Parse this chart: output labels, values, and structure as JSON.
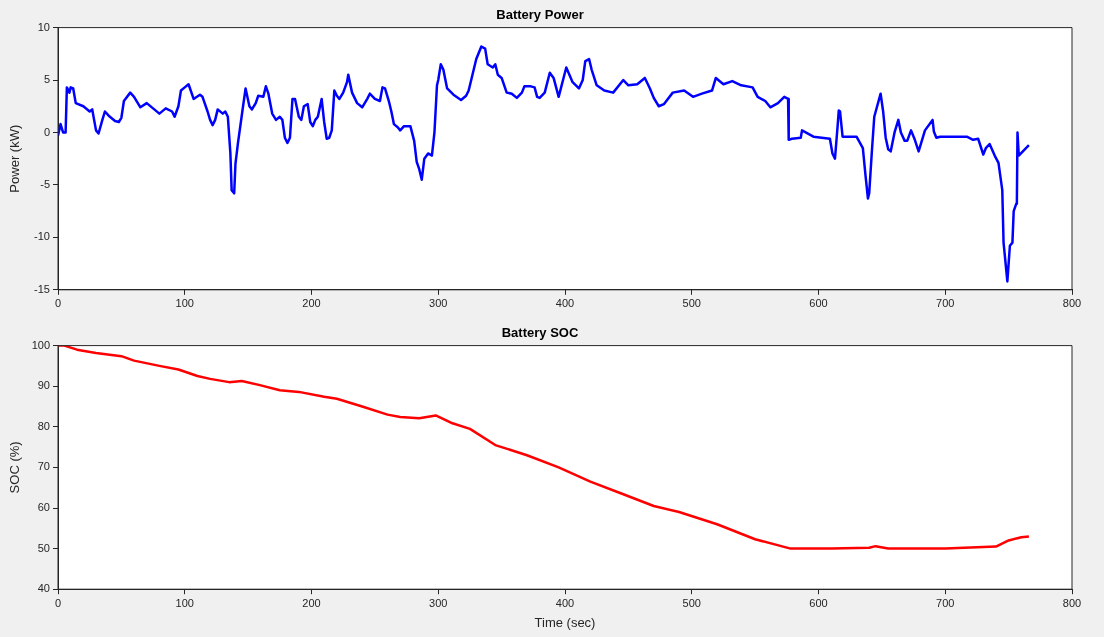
{
  "chart_data": [
    {
      "type": "line",
      "title": "Battery Power",
      "ylabel": "Power (kW)",
      "xlim": [
        0,
        800
      ],
      "xticks": [
        0,
        100,
        200,
        300,
        400,
        500,
        600,
        700,
        800
      ],
      "ylim": [
        -15,
        10
      ],
      "yticks": [
        -15,
        -10,
        -5,
        0,
        5,
        10
      ],
      "grid": false,
      "x": [
        0,
        2,
        4,
        6,
        7,
        9,
        10,
        12,
        14,
        20,
        25,
        27,
        30,
        32,
        35,
        37,
        40,
        45,
        48,
        50,
        52,
        57,
        60,
        65,
        70,
        75,
        80,
        85,
        90,
        92,
        95,
        97,
        100,
        103,
        107,
        112,
        114,
        118,
        120,
        122,
        124,
        126,
        130,
        132,
        134,
        136,
        137,
        139,
        140,
        142,
        146,
        148,
        151,
        153,
        156,
        158,
        162,
        164,
        166,
        169,
        172,
        175,
        177,
        179,
        181,
        183,
        185,
        187,
        190,
        192,
        194,
        197,
        199,
        201,
        203,
        205,
        208,
        210,
        212,
        214,
        216,
        218,
        220,
        222,
        225,
        228,
        229,
        232,
        236,
        240,
        244,
        246,
        250,
        254,
        256,
        258,
        261,
        263,
        265,
        268,
        270,
        273,
        278,
        281,
        283,
        285,
        287,
        289,
        292,
        295,
        297,
        299,
        300,
        302,
        304,
        307,
        312,
        318,
        322,
        324,
        327,
        330,
        334,
        337,
        339,
        343,
        345,
        347,
        350,
        354,
        358,
        362,
        366,
        368,
        373,
        376,
        378,
        380,
        384,
        388,
        391,
        395,
        401,
        406,
        411,
        414,
        416,
        419,
        421,
        425,
        431,
        438,
        446,
        450,
        457,
        463,
        467,
        470,
        474,
        478,
        485,
        494,
        501,
        508,
        516,
        519,
        525,
        532,
        539,
        548,
        552,
        558,
        562,
        568,
        573,
        576,
        576.5,
        579,
        586,
        587,
        596,
        609,
        611,
        613,
        615,
        616,
        617,
        619,
        630,
        635,
        637,
        639,
        640,
        642,
        644,
        649,
        651,
        653,
        655,
        657,
        660,
        663,
        665,
        668,
        670,
        673,
        676,
        679,
        684,
        690,
        691,
        693,
        696,
        717,
        722,
        726,
        730,
        732,
        735,
        739,
        742,
        745,
        746,
        749,
        750,
        751,
        753,
        754,
        756,
        756.5,
        757,
        758,
        766
      ],
      "series": [
        {
          "color": "#0000ff",
          "values": [
            -0.3,
            0.8,
            0,
            0,
            4.3,
            3.8,
            4.3,
            4.2,
            2.8,
            2.5,
            2,
            2.2,
            0.2,
            -0.1,
            1.2,
            2,
            1.6,
            1.1,
            1,
            1.4,
            3,
            3.8,
            3.4,
            2.4,
            2.8,
            2.3,
            1.8,
            2.3,
            2,
            1.5,
            2.5,
            4,
            4.3,
            4.6,
            3.2,
            3.6,
            3.4,
            2,
            1.2,
            0.7,
            1.2,
            2.2,
            1.8,
            2,
            1.5,
            -2,
            -5.5,
            -5.8,
            -3,
            -1,
            2.5,
            4.2,
            2.5,
            2.2,
            2.8,
            3.5,
            3.4,
            4.4,
            3.7,
            1.8,
            1.2,
            1.5,
            1.2,
            -0.5,
            -1,
            -0.5,
            3.2,
            3.2,
            1.5,
            1.2,
            2.5,
            2.7,
            1,
            0.6,
            1.2,
            1.5,
            3.2,
            1,
            -0.6,
            -0.5,
            0.2,
            4,
            3.5,
            3.2,
            3.8,
            4.8,
            5.5,
            3.8,
            2.8,
            2.4,
            3.2,
            3.7,
            3.2,
            3,
            4.3,
            4.2,
            3,
            2,
            0.8,
            0.5,
            0.2,
            0.6,
            0.6,
            -0.8,
            -2.8,
            -3.5,
            -4.5,
            -2.5,
            -2,
            -2.2,
            0,
            4.5,
            5,
            6.5,
            6,
            4.2,
            3.6,
            3.1,
            3.5,
            4,
            5.5,
            7,
            8.2,
            8,
            6.5,
            6.2,
            6.5,
            5.5,
            5.2,
            3.8,
            3.7,
            3.3,
            3.8,
            4.4,
            4.4,
            4.3,
            3.4,
            3.3,
            3.8,
            5.7,
            5.2,
            3.4,
            6.2,
            4.8,
            4.2,
            5,
            6.8,
            7,
            6,
            4.5,
            4,
            3.8,
            5,
            4.5,
            4.6,
            5.2,
            4.2,
            3.3,
            2.5,
            2.7,
            3.8,
            4,
            3.4,
            3.7,
            4,
            5.2,
            4.6,
            4.9,
            4.5,
            4.3,
            3.4,
            3,
            2.4,
            2.8,
            3.4,
            3.2,
            -0.7,
            -0.6,
            -0.5,
            0.2,
            -0.4,
            -0.6,
            -2,
            -2.5,
            0.5,
            2.1,
            2,
            -0.4,
            -0.4,
            -1.5,
            -4,
            -6.3,
            -5.8,
            -2,
            1.5,
            3.7,
            2,
            -0.5,
            -1.6,
            -1.8,
            0,
            1.2,
            0,
            -0.8,
            -0.8,
            0.2,
            -0.7,
            -1.8,
            0.2,
            1.2,
            0.1,
            -0.5,
            -0.4,
            -0.4,
            -0.7,
            -0.6,
            -2.1,
            -1.5,
            -1.1,
            -2.2,
            -2.9,
            -5.5,
            -10.5,
            -14.2,
            -12.5,
            -10.8,
            -10.5,
            -7.5,
            -6.8,
            -6.7,
            0,
            -2.2,
            -1.2
          ]
        }
      ]
    },
    {
      "type": "line",
      "title": "Battery SOC",
      "xlabel": "Time (sec)",
      "ylabel": "SOC (%)",
      "xlim": [
        0,
        800
      ],
      "xticks": [
        0,
        100,
        200,
        300,
        400,
        500,
        600,
        700,
        800
      ],
      "ylim": [
        40,
        100
      ],
      "yticks": [
        40,
        50,
        60,
        70,
        80,
        90,
        100
      ],
      "grid": false,
      "x": [
        0,
        5,
        15,
        30,
        50,
        60,
        80,
        95,
        110,
        120,
        135,
        145,
        160,
        175,
        190,
        210,
        220,
        240,
        260,
        270,
        285,
        298,
        310,
        325,
        345,
        370,
        395,
        420,
        445,
        470,
        490,
        520,
        550,
        578,
        610,
        640,
        645,
        655,
        700,
        740,
        750,
        760,
        766
      ],
      "series": [
        {
          "color": "#ff0000",
          "values": [
            100,
            100,
            99,
            98.2,
            97.4,
            96.3,
            95,
            94.1,
            92.5,
            91.8,
            91,
            91.3,
            90.2,
            89,
            88.6,
            87.4,
            86.9,
            85,
            83,
            82.4,
            82.1,
            82.8,
            81,
            79.5,
            75.5,
            73,
            70,
            66.5,
            63.5,
            60.5,
            59,
            56,
            52.3,
            50,
            50,
            50.2,
            50.6,
            50,
            50,
            50.5,
            52,
            52.8,
            53
          ]
        }
      ]
    }
  ]
}
